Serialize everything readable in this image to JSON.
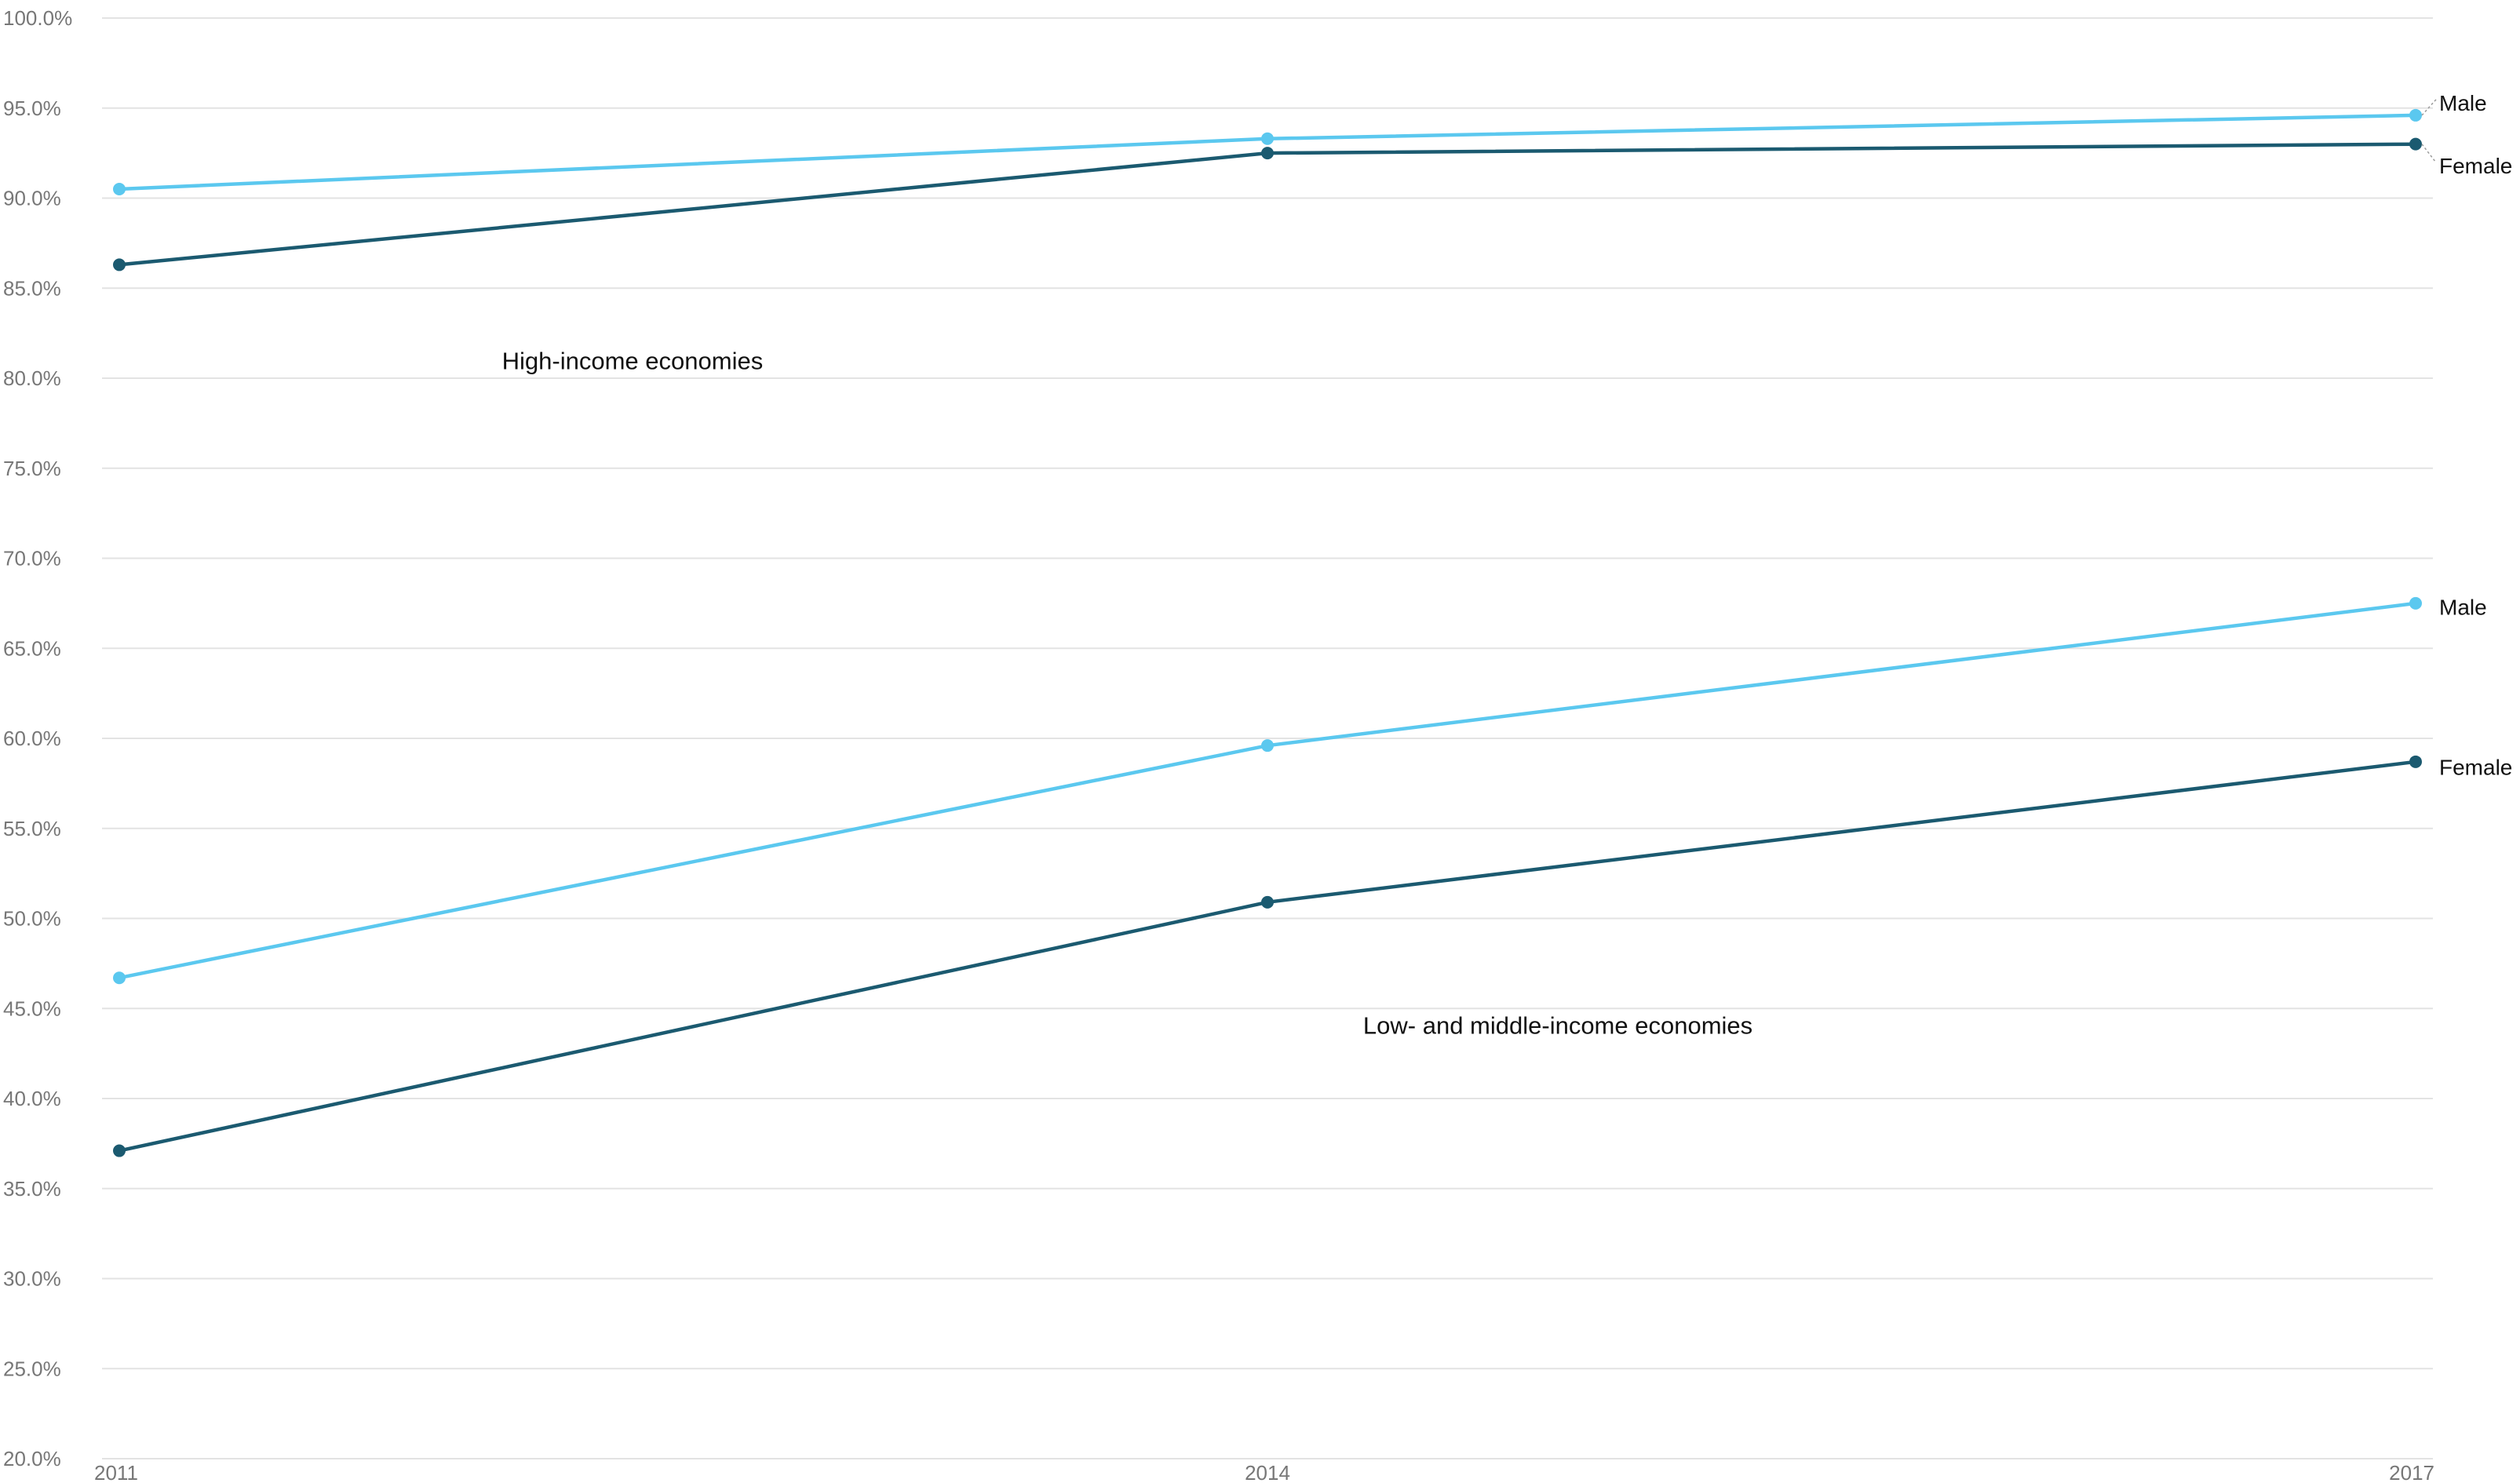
{
  "chart_data": {
    "type": "line",
    "title": "",
    "xlabel": "",
    "ylabel": "",
    "x": [
      2011,
      2014,
      2017
    ],
    "x_tick_labels": [
      "2011",
      "2014",
      "2017"
    ],
    "ylim": [
      20,
      100
    ],
    "y_tick_values": [
      20,
      25,
      30,
      35,
      40,
      45,
      50,
      55,
      60,
      65,
      70,
      75,
      80,
      85,
      90,
      95,
      100
    ],
    "y_tick_labels": [
      "20.0%",
      "25.0%",
      "30.0%",
      "35.0%",
      "40.0%",
      "45.0%",
      "50.0%",
      "55.0%",
      "60.0%",
      "65.0%",
      "70.0%",
      "75.0%",
      "80.0%",
      "85.0%",
      "90.0%",
      "95.0%",
      "100.0%"
    ],
    "grid": true,
    "legend": "none",
    "series": [
      {
        "name": "Male",
        "group": "high-income",
        "color": "#5bc8ef",
        "values": [
          90.5,
          93.3,
          94.6
        ]
      },
      {
        "name": "Female",
        "group": "high-income",
        "color": "#1b5a70",
        "values": [
          86.3,
          92.5,
          93.0
        ]
      },
      {
        "name": "Male",
        "group": "low-middle-income",
        "color": "#5bc8ef",
        "values": [
          46.7,
          59.6,
          67.5
        ]
      },
      {
        "name": "Female",
        "group": "low-middle-income",
        "color": "#1b5a70",
        "values": [
          37.1,
          50.9,
          58.7
        ]
      }
    ],
    "annotations": [
      {
        "id": "high-income",
        "text": "High-income economies",
        "x": 2012.0,
        "y": 80.5
      },
      {
        "id": "low-middle-income",
        "text": "Low- and middle-income economies",
        "x": 2014.25,
        "y": 43.6
      }
    ],
    "end_labels": [
      {
        "series": 0,
        "text": "Male",
        "y": 95.3
      },
      {
        "series": 1,
        "text": "Female",
        "y": 91.8
      },
      {
        "series": 2,
        "text": "Male",
        "y": 67.3
      },
      {
        "series": 3,
        "text": "Female",
        "y": 58.4
      }
    ]
  }
}
